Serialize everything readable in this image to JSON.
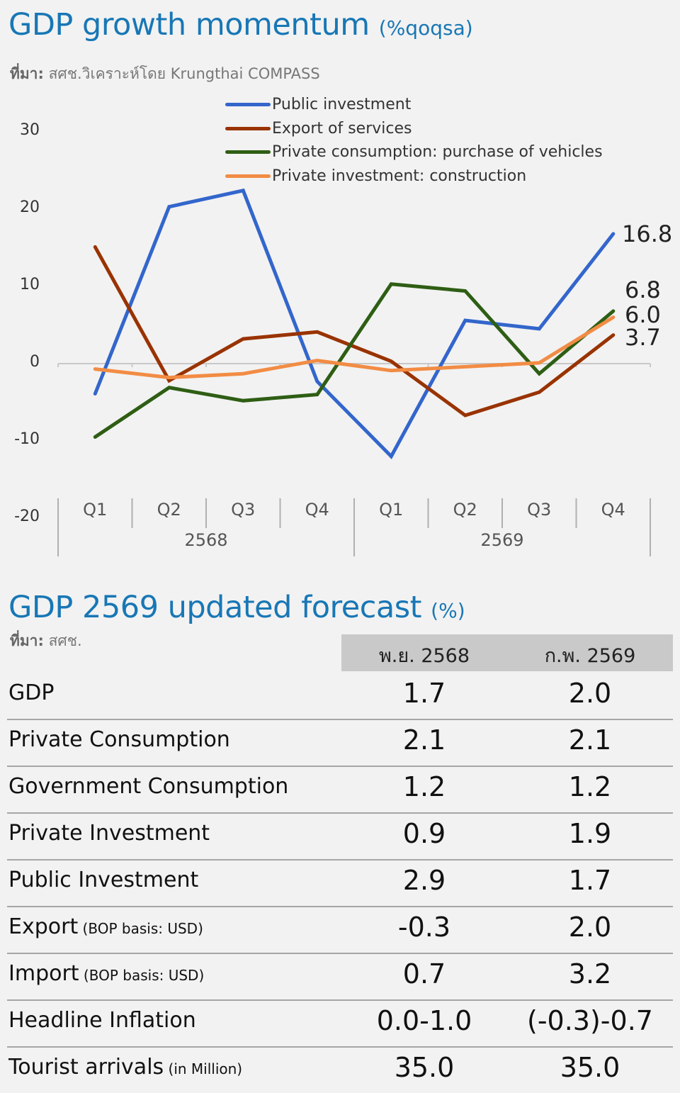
{
  "chart_section": {
    "title": "GDP growth momentum",
    "title_unit": "(%qoqsa)",
    "source_label": "ที่มา:",
    "source_text": "สศช.วิเคราะห์โดย Krungthai COMPASS"
  },
  "chart_data": {
    "type": "line",
    "title": "GDP growth momentum (%qoqsa)",
    "xlabel": "",
    "ylabel": "",
    "ylim": [
      -20,
      30
    ],
    "yticks": [
      "30",
      "20",
      "10",
      "0",
      "-10",
      "-20"
    ],
    "ytick_values": [
      30,
      20,
      10,
      0,
      -10,
      -20
    ],
    "categories": [
      "Q1",
      "Q2",
      "Q3",
      "Q4",
      "Q1",
      "Q2",
      "Q3",
      "Q4"
    ],
    "category_groups": [
      {
        "label": "2568",
        "span": 4
      },
      {
        "label": "2569",
        "span": 4
      }
    ],
    "legend_position": "top-right",
    "grid": false,
    "series": [
      {
        "name": "Public investment",
        "color": "#3366cc",
        "values": [
          -3.9,
          20.3,
          22.4,
          -2.3,
          -12.0,
          5.6,
          4.5,
          16.8
        ],
        "end_label": "16.8"
      },
      {
        "name": "Export of services",
        "color": "#993300",
        "values": [
          15.1,
          -2.2,
          3.2,
          4.1,
          0.3,
          -6.7,
          -3.7,
          3.7
        ],
        "end_label": "3.7"
      },
      {
        "name": "Private consumption: purchase of vehicles",
        "color": "#2e5e14",
        "values": [
          -9.5,
          -3.1,
          -4.8,
          -4.0,
          10.3,
          9.4,
          -1.3,
          6.8
        ],
        "end_label": "6.8"
      },
      {
        "name": "Private investment: construction",
        "color": "#f28c44",
        "values": [
          -0.7,
          -1.8,
          -1.3,
          0.4,
          -0.9,
          -0.4,
          0.1,
          6.0
        ],
        "end_label": "6.0"
      }
    ]
  },
  "table_section": {
    "title": "GDP 2569 updated forecast",
    "title_unit": "(%)",
    "source_label": "ที่มา:",
    "source_text": "สศช.",
    "columns": [
      "พ.ย. 2568",
      "ก.พ. 2569"
    ],
    "rows": [
      {
        "label": "GDP",
        "note": "",
        "values": [
          "1.7",
          "2.0"
        ]
      },
      {
        "label": "Private Consumption",
        "note": "",
        "values": [
          "2.1",
          "2.1"
        ]
      },
      {
        "label": "Government Consumption",
        "note": "",
        "values": [
          "1.2",
          "1.2"
        ]
      },
      {
        "label": "Private Investment",
        "note": "",
        "values": [
          "0.9",
          "1.9"
        ]
      },
      {
        "label": "Public Investment",
        "note": "",
        "values": [
          "2.9",
          "1.7"
        ]
      },
      {
        "label": "Export",
        "note": "(BOP basis: USD)",
        "values": [
          "-0.3",
          "2.0"
        ]
      },
      {
        "label": "Import",
        "note": "(BOP basis: USD)",
        "values": [
          "0.7",
          "3.2"
        ]
      },
      {
        "label": "Headline Inflation",
        "note": "",
        "values": [
          "0.0-1.0",
          "(-0.3)-0.7"
        ]
      },
      {
        "label": "Tourist arrivals",
        "note": "(in Million)",
        "values": [
          "35.0",
          "35.0"
        ]
      }
    ]
  }
}
